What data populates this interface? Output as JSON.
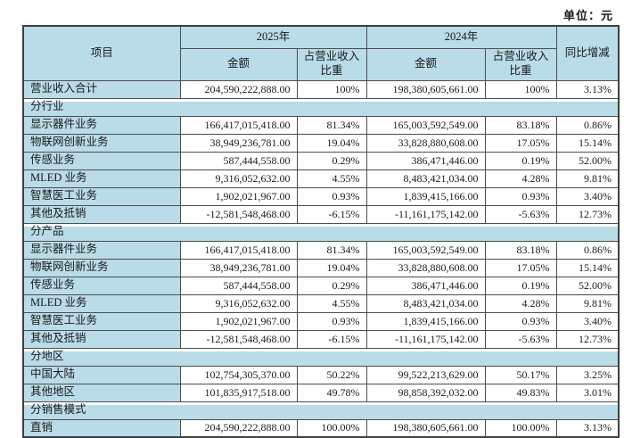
{
  "unit_label": "单位：元",
  "table": {
    "headers": {
      "item": "项目",
      "year_2025": "2025年",
      "year_2024": "2024年",
      "amount_2025": "金额",
      "ratio_2025": "占营业收入比重",
      "amount_2024": "金额",
      "ratio_2024": "占营业收入比重",
      "yoy": "同比增减"
    },
    "rows": [
      {
        "type": "data",
        "label": "营业收入合计",
        "cells": [
          "204,590,222,888.00",
          "100%",
          "198,380,605,661.00",
          "100%",
          "3.13%"
        ]
      },
      {
        "type": "section",
        "label": "分行业"
      },
      {
        "type": "data",
        "label": "显示器件业务",
        "cells": [
          "166,417,015,418.00",
          "81.34%",
          "165,003,592,549.00",
          "83.18%",
          "0.86%"
        ]
      },
      {
        "type": "data",
        "label": "物联网创新业务",
        "cells": [
          "38,949,236,781.00",
          "19.04%",
          "33,828,880,608.00",
          "17.05%",
          "15.14%"
        ]
      },
      {
        "type": "data",
        "label": "传感业务",
        "cells": [
          "587,444,558.00",
          "0.29%",
          "386,471,446.00",
          "0.19%",
          "52.00%"
        ]
      },
      {
        "type": "data",
        "label": "MLED 业务",
        "cells": [
          "9,316,052,632.00",
          "4.55%",
          "8,483,421,034.00",
          "4.28%",
          "9.81%"
        ]
      },
      {
        "type": "data",
        "label": "智慧医工业务",
        "cells": [
          "1,902,021,967.00",
          "0.93%",
          "1,839,415,166.00",
          "0.93%",
          "3.40%"
        ]
      },
      {
        "type": "data",
        "label": "其他及抵销",
        "cells": [
          "-12,581,548,468.00",
          "-6.15%",
          "-11,161,175,142.00",
          "-5.63%",
          "12.73%"
        ]
      },
      {
        "type": "section",
        "label": "分产品"
      },
      {
        "type": "data",
        "label": "显示器件业务",
        "cells": [
          "166,417,015,418.00",
          "81.34%",
          "165,003,592,549.00",
          "83.18%",
          "0.86%"
        ]
      },
      {
        "type": "data",
        "label": "物联网创新业务",
        "cells": [
          "38,949,236,781.00",
          "19.04%",
          "33,828,880,608.00",
          "17.05%",
          "15.14%"
        ]
      },
      {
        "type": "data",
        "label": "传感业务",
        "cells": [
          "587,444,558.00",
          "0.29%",
          "386,471,446.00",
          "0.19%",
          "52.00%"
        ]
      },
      {
        "type": "data",
        "label": "MLED 业务",
        "cells": [
          "9,316,052,632.00",
          "4.55%",
          "8,483,421,034.00",
          "4.28%",
          "9.81%"
        ]
      },
      {
        "type": "data",
        "label": "智慧医工业务",
        "cells": [
          "1,902,021,967.00",
          "0.93%",
          "1,839,415,166.00",
          "0.93%",
          "3.40%"
        ]
      },
      {
        "type": "data",
        "label": "其他及抵销",
        "cells": [
          "-12,581,548,468.00",
          "-6.15%",
          "-11,161,175,142.00",
          "-5.63%",
          "12.73%"
        ]
      },
      {
        "type": "section",
        "label": "分地区"
      },
      {
        "type": "data",
        "label": "中国大陆",
        "cells": [
          "102,754,305,370.00",
          "50.22%",
          "99,522,213,629.00",
          "50.17%",
          "3.25%"
        ]
      },
      {
        "type": "data",
        "label": "其他地区",
        "cells": [
          "101,835,917,518.00",
          "49.78%",
          "98,858,392,032.00",
          "49.83%",
          "3.01%"
        ]
      },
      {
        "type": "section",
        "label": "分销售模式"
      },
      {
        "type": "data",
        "label": "直销",
        "cells": [
          "204,590,222,888.00",
          "100.00%",
          "198,380,605,661.00",
          "100.00%",
          "3.13%"
        ]
      }
    ],
    "colors": {
      "header_fill": "#b9dce8",
      "grid_line": "#4d4d4d",
      "outer_border": "#3f3f3f",
      "text": "#1a1a1a"
    }
  }
}
